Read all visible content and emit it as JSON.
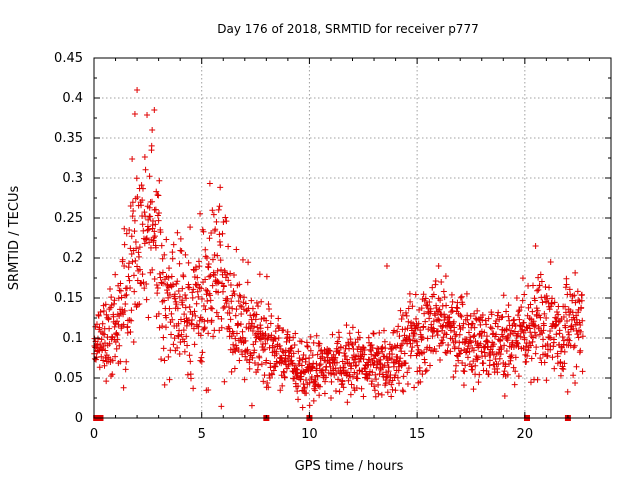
{
  "chart_data": {
    "type": "scatter",
    "title": "Day 176 of 2018, SRMTID for receiver p777",
    "xlabel": "GPS time / hours",
    "ylabel": "SRMTID / TECUs",
    "xlim": [
      0,
      24
    ],
    "ylim": [
      0,
      0.45
    ],
    "x_ticks": [
      0,
      5,
      10,
      15,
      20
    ],
    "x_tick_labels": [
      "0",
      "5",
      "10",
      "15",
      "20"
    ],
    "y_ticks": [
      0,
      0.05,
      0.1,
      0.15,
      0.2,
      0.25,
      0.3,
      0.35,
      0.4,
      0.45
    ],
    "y_tick_labels": [
      "0",
      "0.05",
      "0.1",
      "0.15",
      "0.2",
      "0.25",
      "0.3",
      "0.35",
      "0.4",
      "0.45"
    ],
    "grid": true,
    "series_color": "#e00000",
    "marker": "plus",
    "trend_hours": [
      0.0,
      0.5,
      1.0,
      1.5,
      2.0,
      2.5,
      3.0,
      3.5,
      4.0,
      4.5,
      5.0,
      5.5,
      6.0,
      6.5,
      7.0,
      7.5,
      8.0,
      8.5,
      9.0,
      9.5,
      10.0,
      10.5,
      11.0,
      11.5,
      12.0,
      12.5,
      13.0,
      13.5,
      14.0,
      14.5,
      15.0,
      15.5,
      16.0,
      16.5,
      17.0,
      17.5,
      18.0,
      18.5,
      19.0,
      19.5,
      20.0,
      20.5,
      21.0,
      21.5,
      22.0,
      22.5
    ],
    "trend_values": [
      0.09,
      0.1,
      0.11,
      0.16,
      0.2,
      0.26,
      0.2,
      0.15,
      0.14,
      0.13,
      0.14,
      0.17,
      0.16,
      0.13,
      0.11,
      0.1,
      0.1,
      0.08,
      0.075,
      0.06,
      0.06,
      0.065,
      0.07,
      0.07,
      0.07,
      0.065,
      0.065,
      0.065,
      0.075,
      0.09,
      0.1,
      0.115,
      0.12,
      0.115,
      0.1,
      0.095,
      0.09,
      0.085,
      0.09,
      0.095,
      0.1,
      0.12,
      0.11,
      0.11,
      0.115,
      0.12
    ],
    "spread_values": [
      0.02,
      0.025,
      0.03,
      0.045,
      0.06,
      0.07,
      0.06,
      0.05,
      0.045,
      0.045,
      0.05,
      0.055,
      0.05,
      0.04,
      0.035,
      0.03,
      0.03,
      0.025,
      0.02,
      0.02,
      0.02,
      0.02,
      0.02,
      0.02,
      0.02,
      0.02,
      0.02,
      0.02,
      0.022,
      0.025,
      0.03,
      0.03,
      0.032,
      0.03,
      0.025,
      0.025,
      0.022,
      0.022,
      0.022,
      0.025,
      0.03,
      0.035,
      0.03,
      0.03,
      0.03,
      0.03
    ],
    "n_points": 1800,
    "x_range_plotted": [
      0.0,
      22.7
    ],
    "notable_points": [
      {
        "x": 2.0,
        "y": 0.41
      },
      {
        "x": 1.9,
        "y": 0.38
      },
      {
        "x": 2.8,
        "y": 0.385
      },
      {
        "x": 2.7,
        "y": 0.36
      },
      {
        "x": 13.6,
        "y": 0.19
      },
      {
        "x": 16.0,
        "y": 0.19
      },
      {
        "x": 20.5,
        "y": 0.215
      },
      {
        "x": 21.2,
        "y": 0.195
      },
      {
        "x": 5.3,
        "y": 0.035
      }
    ],
    "zero_markers_hours": [
      0.1,
      0.3,
      8.0,
      10.0,
      20.1,
      22.0
    ]
  }
}
